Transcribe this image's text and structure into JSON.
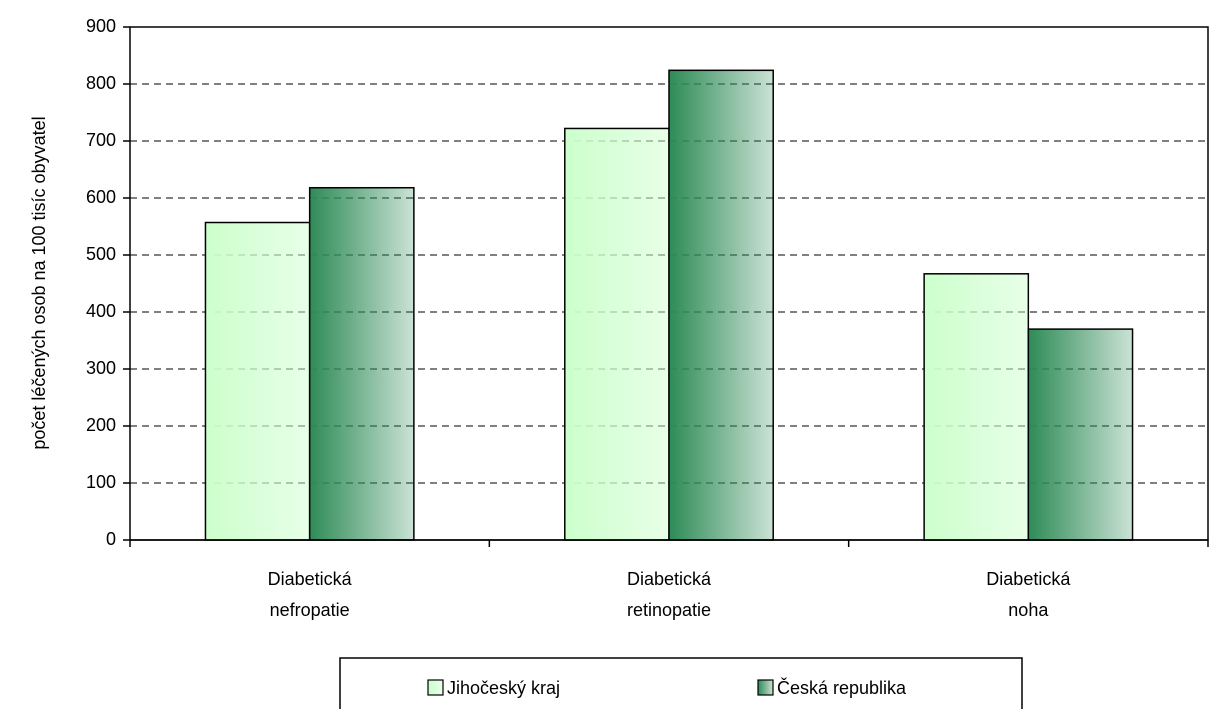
{
  "chart_data": {
    "type": "bar",
    "y_label": "počet léčených osob na 100 tisíc obyvatel",
    "categories": [
      "Diabetická nefropatie",
      "Diabetická retinopatie",
      "Diabetická noha"
    ],
    "series": [
      {
        "name": "Jihočeský kraj",
        "color": "#ccffcc",
        "values": [
          557,
          722,
          467
        ]
      },
      {
        "name": "Česká republika",
        "color": "#2e8b57",
        "values": [
          618,
          824,
          370
        ]
      }
    ],
    "ylim": [
      0,
      900
    ],
    "yticks": [
      0,
      100,
      200,
      300,
      400,
      500,
      600,
      700,
      800,
      900
    ],
    "grid": true,
    "legend": "bottom"
  }
}
